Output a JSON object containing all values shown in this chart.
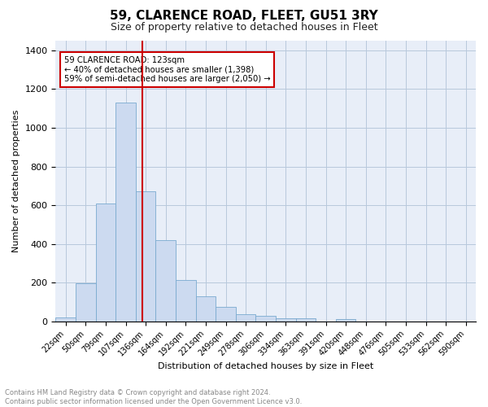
{
  "title": "59, CLARENCE ROAD, FLEET, GU51 3RY",
  "subtitle": "Size of property relative to detached houses in Fleet",
  "xlabel": "Distribution of detached houses by size in Fleet",
  "ylabel": "Number of detached properties",
  "categories": [
    "22sqm",
    "50sqm",
    "79sqm",
    "107sqm",
    "136sqm",
    "164sqm",
    "192sqm",
    "221sqm",
    "249sqm",
    "278sqm",
    "306sqm",
    "334sqm",
    "363sqm",
    "391sqm",
    "420sqm",
    "448sqm",
    "476sqm",
    "505sqm",
    "533sqm",
    "562sqm",
    "590sqm"
  ],
  "values": [
    20,
    195,
    610,
    1130,
    670,
    420,
    215,
    130,
    75,
    35,
    28,
    15,
    14,
    0,
    12,
    0,
    0,
    0,
    0,
    0,
    0
  ],
  "bar_color": "#ccdaf0",
  "bar_edge_color": "#7aaad0",
  "red_line_x": 3.85,
  "annotation_text": "59 CLARENCE ROAD: 123sqm\n← 40% of detached houses are smaller (1,398)\n59% of semi-detached houses are larger (2,050) →",
  "annotation_box_facecolor": "#ffffff",
  "annotation_box_edgecolor": "#cc0000",
  "footer_text": "Contains HM Land Registry data © Crown copyright and database right 2024.\nContains public sector information licensed under the Open Government Licence v3.0.",
  "background_color": "#e8eef8",
  "ylim": [
    0,
    1450
  ],
  "title_fontsize": 11,
  "subtitle_fontsize": 9,
  "tick_fontsize": 7,
  "ylabel_fontsize": 8,
  "xlabel_fontsize": 8
}
